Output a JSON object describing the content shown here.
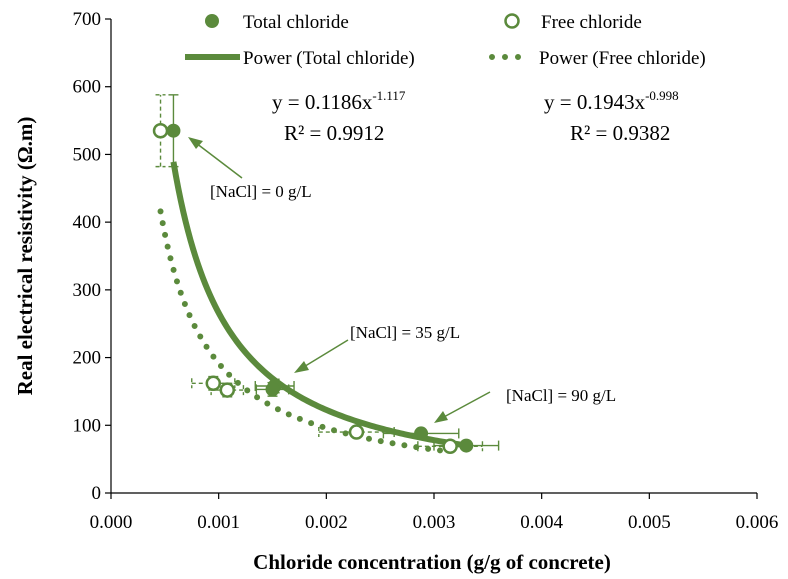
{
  "colors": {
    "series": "#5b8a3c",
    "axis": "#000000"
  },
  "chart_data": {
    "type": "scatter",
    "xlabel": "Chloride concentration (g/g of concrete)",
    "ylabel": "Real electrical resistivity (Ω.m)",
    "xlim": [
      0,
      0.006
    ],
    "ylim": [
      0,
      700
    ],
    "x_ticks": [
      "0.000",
      "0.001",
      "0.002",
      "0.003",
      "0.004",
      "0.005",
      "0.006"
    ],
    "y_ticks": [
      "0",
      "100",
      "200",
      "300",
      "400",
      "500",
      "600",
      "700"
    ],
    "legend": {
      "total": "Total chloride",
      "free": "Free chloride",
      "power_total": "Power (Total chloride)",
      "power_free": "Power (Free chloride)"
    },
    "series": [
      {
        "name": "Total chloride",
        "marker": "filled-circle",
        "points": [
          {
            "x": 0.00058,
            "y": 535,
            "xerr": 3e-05,
            "yerr": 53
          },
          {
            "x": 0.00152,
            "y": 158,
            "xerr": 0.00018,
            "yerr": 10
          },
          {
            "x": 0.0015,
            "y": 153,
            "xerr": 0.00015,
            "yerr": 10
          },
          {
            "x": 0.00288,
            "y": 88,
            "xerr": 0.00035,
            "yerr": 6
          },
          {
            "x": 0.0033,
            "y": 70,
            "xerr": 0.0003,
            "yerr": 5
          }
        ]
      },
      {
        "name": "Free chloride",
        "marker": "open-circle",
        "points": [
          {
            "x": 0.00046,
            "y": 535,
            "xerr": 3e-05,
            "yerr": 53
          },
          {
            "x": 0.00095,
            "y": 162,
            "xerr": 0.0002,
            "yerr": 10
          },
          {
            "x": 0.00108,
            "y": 152,
            "xerr": 0.00015,
            "yerr": 10
          },
          {
            "x": 0.00228,
            "y": 90,
            "xerr": 0.00035,
            "yerr": 6
          },
          {
            "x": 0.00315,
            "y": 69,
            "xerr": 0.0003,
            "yerr": 5
          }
        ]
      }
    ],
    "trendlines": [
      {
        "name": "Power (Total chloride)",
        "style": "solid",
        "a": 0.1186,
        "b": -1.117,
        "x_from": 0.00058,
        "x_to": 0.0033
      },
      {
        "name": "Power (Free chloride)",
        "style": "dotted",
        "a": 0.1943,
        "b": -0.998,
        "x_from": 0.00046,
        "x_to": 0.00315
      }
    ],
    "equations": [
      {
        "eq_base": "y = 0.1186x",
        "eq_exp": "-1.117",
        "r2": "R² = 0.9912"
      },
      {
        "eq_base": "y = 0.1943x",
        "eq_exp": "-0.998",
        "r2": "R² = 0.9382"
      }
    ],
    "annotations": [
      {
        "text": "[NaCl] = 0 g/L",
        "arrow_to": {
          "x": 0.00068,
          "y": 520
        }
      },
      {
        "text": "[NaCl] = 35 g/L",
        "arrow_to": {
          "x": 0.00168,
          "y": 178
        }
      },
      {
        "text": "[NaCl] = 90 g/L",
        "arrow_to": {
          "x": 0.00295,
          "y": 100
        }
      }
    ]
  }
}
